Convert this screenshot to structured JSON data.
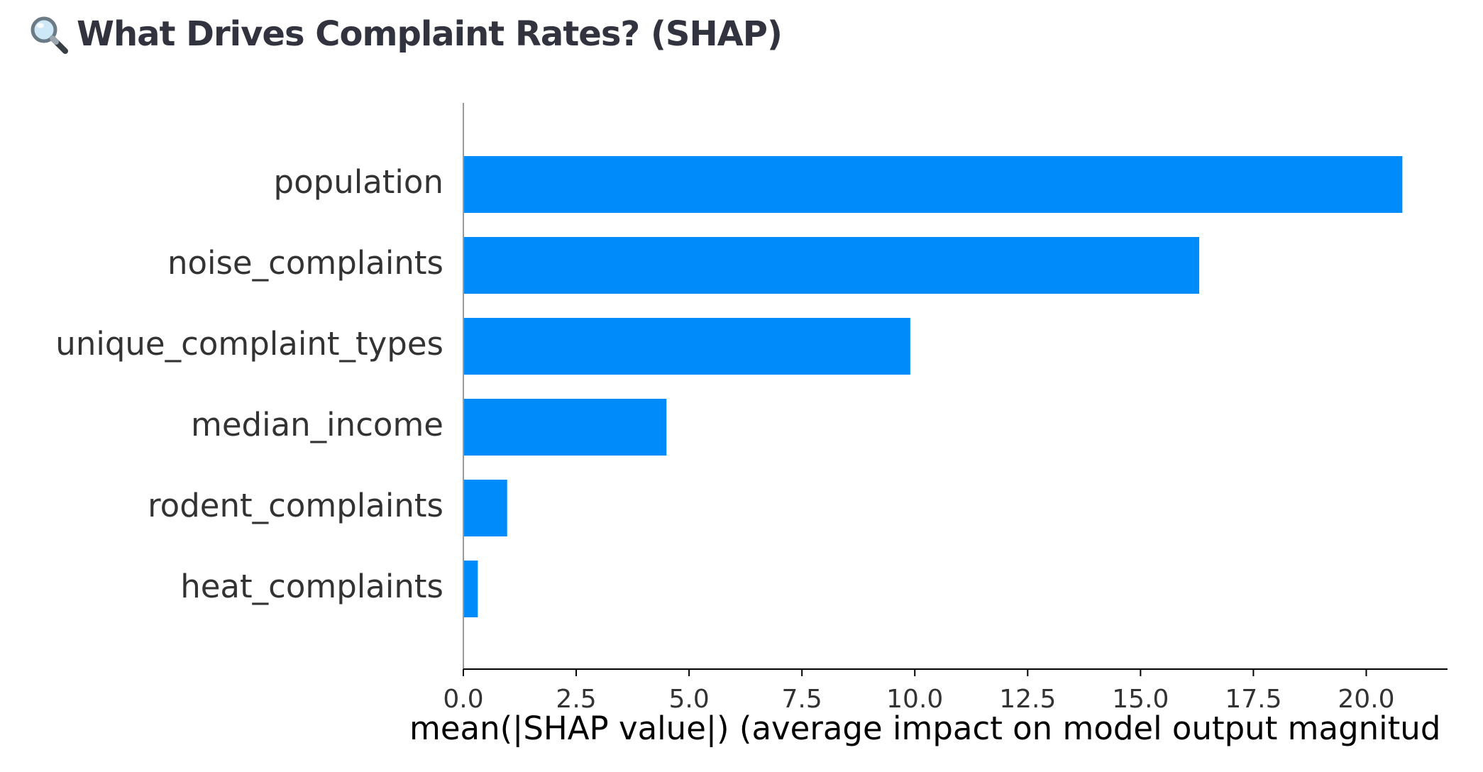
{
  "header": {
    "icon": "magnifying-glass-icon",
    "title": "What Drives Complaint Rates? (SHAP)"
  },
  "chart_data": {
    "type": "bar",
    "orientation": "horizontal",
    "categories": [
      "population",
      "noise_complaints",
      "unique_complaint_types",
      "median_income",
      "rodent_complaints",
      "heat_complaints"
    ],
    "values": [
      20.8,
      16.3,
      9.9,
      4.5,
      0.97,
      0.32
    ],
    "xlabel": "mean(|SHAP value|) (average impact on model output magnitud",
    "xlim": [
      0,
      21.8
    ],
    "xticks": [
      "0.0",
      "2.5",
      "5.0",
      "7.5",
      "10.0",
      "12.5",
      "15.0",
      "17.5",
      "20.0"
    ],
    "xtick_values": [
      0,
      2.5,
      5,
      7.5,
      10,
      12.5,
      15,
      17.5,
      20
    ],
    "bar_color": "#008bfb",
    "grid": false
  }
}
